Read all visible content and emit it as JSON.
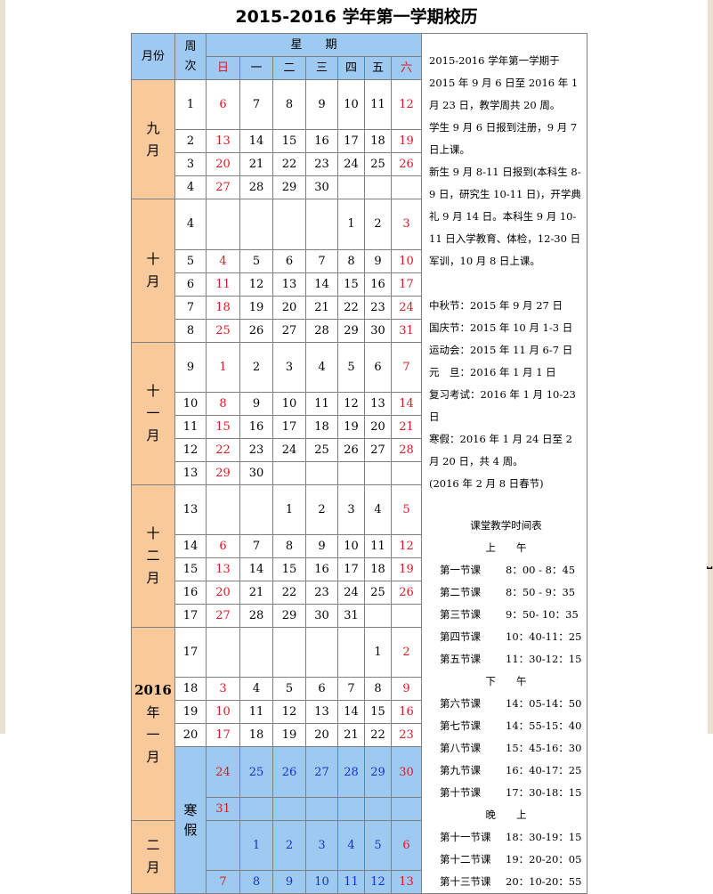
{
  "title": "2015-2016 学年第一学期校历",
  "headers": {
    "month": "月份",
    "week": "周次",
    "weekdays_label": "星　　期",
    "days": [
      "日",
      "一",
      "二",
      "三",
      "四",
      "五",
      "六"
    ]
  },
  "months": [
    {
      "label": "九\n月"
    },
    {
      "label": "十\n月"
    },
    {
      "label": "十\n一\n月"
    },
    {
      "label": "十\n二\n月"
    },
    {
      "label": "2016\n年\n一\n月"
    },
    {
      "label": "二\n月"
    }
  ],
  "rows": [
    {
      "week": "1",
      "days": [
        "6",
        "7",
        "8",
        "9",
        "10",
        "11",
        "12"
      ]
    },
    {
      "week": "2",
      "days": [
        "13",
        "14",
        "15",
        "16",
        "17",
        "18",
        "19"
      ]
    },
    {
      "week": "3",
      "days": [
        "20",
        "21",
        "22",
        "23",
        "24",
        "25",
        "26"
      ]
    },
    {
      "week": "4",
      "days": [
        "27",
        "28",
        "29",
        "30",
        "",
        "",
        ""
      ]
    },
    {
      "week": "4",
      "days": [
        "",
        "",
        "",
        "",
        "1",
        "2",
        "3"
      ]
    },
    {
      "week": "5",
      "days": [
        "4",
        "5",
        "6",
        "7",
        "8",
        "9",
        "10"
      ]
    },
    {
      "week": "6",
      "days": [
        "11",
        "12",
        "13",
        "14",
        "15",
        "16",
        "17"
      ]
    },
    {
      "week": "7",
      "days": [
        "18",
        "19",
        "20",
        "21",
        "22",
        "23",
        "24"
      ]
    },
    {
      "week": "8",
      "days": [
        "25",
        "26",
        "27",
        "28",
        "29",
        "30",
        "31"
      ]
    },
    {
      "week": "9",
      "days": [
        "1",
        "2",
        "3",
        "4",
        "5",
        "6",
        "7"
      ]
    },
    {
      "week": "10",
      "days": [
        "8",
        "9",
        "10",
        "11",
        "12",
        "13",
        "14"
      ]
    },
    {
      "week": "11",
      "days": [
        "15",
        "16",
        "17",
        "18",
        "19",
        "20",
        "21"
      ]
    },
    {
      "week": "12",
      "days": [
        "22",
        "23",
        "24",
        "25",
        "26",
        "27",
        "28"
      ]
    },
    {
      "week": "13",
      "days": [
        "29",
        "30",
        "",
        "",
        "",
        "",
        ""
      ]
    },
    {
      "week": "13",
      "days": [
        "",
        "",
        "1",
        "2",
        "3",
        "4",
        "5"
      ]
    },
    {
      "week": "14",
      "days": [
        "6",
        "7",
        "8",
        "9",
        "10",
        "11",
        "12"
      ]
    },
    {
      "week": "15",
      "days": [
        "13",
        "14",
        "15",
        "16",
        "17",
        "18",
        "19"
      ]
    },
    {
      "week": "16",
      "days": [
        "20",
        "21",
        "22",
        "23",
        "24",
        "25",
        "26"
      ]
    },
    {
      "week": "17",
      "days": [
        "27",
        "28",
        "29",
        "30",
        "31",
        "",
        ""
      ]
    },
    {
      "week": "17",
      "days": [
        "",
        "",
        "",
        "",
        "",
        "1",
        "2"
      ]
    },
    {
      "week": "18",
      "days": [
        "3",
        "4",
        "5",
        "6",
        "7",
        "8",
        "9"
      ]
    },
    {
      "week": "19",
      "days": [
        "10",
        "11",
        "12",
        "13",
        "14",
        "15",
        "16"
      ]
    },
    {
      "week": "20",
      "days": [
        "17",
        "18",
        "19",
        "20",
        "21",
        "22",
        "23"
      ]
    },
    {
      "days": [
        "24",
        "25",
        "26",
        "27",
        "28",
        "29",
        "30"
      ]
    },
    {
      "days": [
        "31",
        "",
        "",
        "",
        "",
        "",
        ""
      ]
    },
    {
      "days": [
        "",
        "1",
        "2",
        "3",
        "4",
        "5",
        "6"
      ]
    },
    {
      "days": [
        "7",
        "8",
        "9",
        "10",
        "11",
        "12",
        "13"
      ]
    }
  ],
  "winter_label": "寒\n假",
  "notes": [
    "2015-2016 学年第一学期于 2015 年 9 月 6 日至 2016 年 1 月 23 日，教学周共 20 周。",
    "学生 9 月 6 日报到注册，9 月 7 日上课。",
    "新生 9 月 8-11 日报到(本科生 8-9 日，研究生 10-11 日)，开学典礼 9 月 14 日。本科生 9 月 10-11 日入学教育、体检，12-30 日军训，10 月 8 日上课。",
    "",
    "中秋节：2015 年 9 月 27 日",
    "国庆节：2015 年 10 月 1-3 日",
    "运动会：2015 年 11 月 6-7 日",
    "元　旦：2016 年 1 月 1 日",
    "复习考试：2016 年 1 月 10-23 日",
    "寒假：2016 年 1 月 24 日至 2 月 20 日，共 4 周。",
    "(2016 年 2 月 8 日春节)"
  ],
  "timetable": {
    "title": "课堂教学时间表",
    "am_label": "上　　午",
    "am": [
      {
        "name": "第一节课",
        "time": "8：00 - 8：45"
      },
      {
        "name": "第二节课",
        "time": "8：50 - 9：35"
      },
      {
        "name": "第三节课",
        "time": "9：50- 10：35"
      },
      {
        "name": "第四节课",
        "time": "10：40-11：25"
      },
      {
        "name": "第五节课",
        "time": "11：30-12：15"
      }
    ],
    "pm_label": "下　　午",
    "pm": [
      {
        "name": "第六节课",
        "time": "14：05-14：50"
      },
      {
        "name": "第七节课",
        "time": "14：55-15：40"
      },
      {
        "name": "第八节课",
        "time": "15：45-16：30"
      },
      {
        "name": "第九节课",
        "time": "16：40-17：25"
      },
      {
        "name": "第十节课",
        "time": "17：30-18：15"
      }
    ],
    "eve_label": "晚　　上",
    "eve": [
      {
        "name": "第十一节课",
        "time": "18：30-19：15"
      },
      {
        "name": "第十二节课",
        "time": "19：20-20：05"
      },
      {
        "name": "第十三节课",
        "time": "20：10-20：55"
      }
    ]
  },
  "colors": {
    "header_bg": "#9ec9f0",
    "month_bg": "#f8c99a",
    "weekend": "#d81b22",
    "holiday": "#1a2fd0"
  }
}
